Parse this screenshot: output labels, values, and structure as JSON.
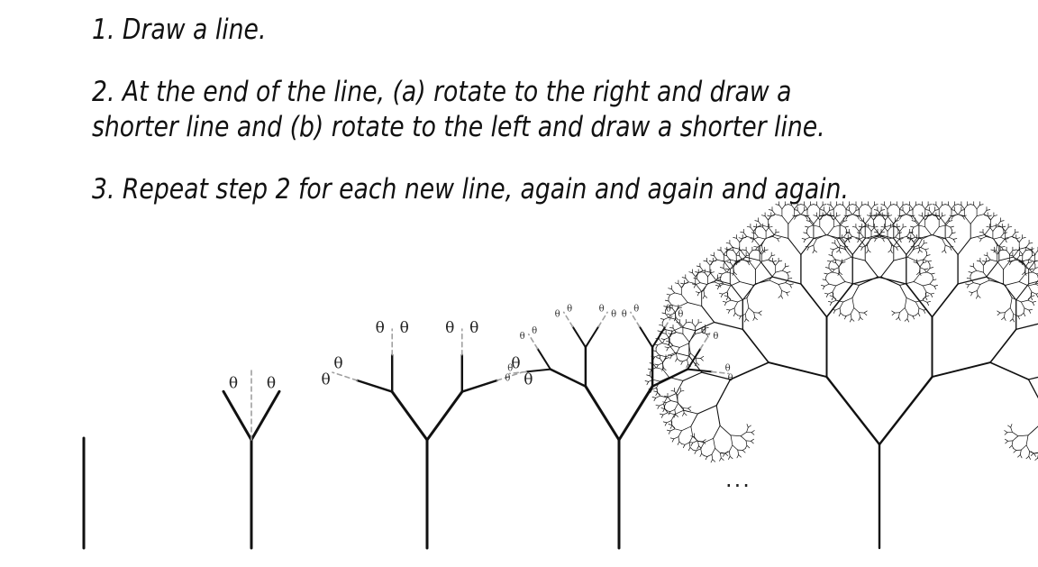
{
  "steps": [
    {
      "text": "1. Draw a line."
    },
    {
      "text": "2. At the end of the line, (a) rotate to the right and draw a\nshorter line and (b) rotate to the left and draw a shorter line."
    },
    {
      "text": "3. Repeat step 2 for each new line, again and again and again."
    }
  ],
  "diagram": {
    "angle_symbol": "θ",
    "ellipsis": "...",
    "stages": [
      {
        "name": "stage-0-line",
        "depth": 0,
        "shows_angles": false
      },
      {
        "name": "stage-1-tree",
        "depth": 1,
        "shows_angles": true
      },
      {
        "name": "stage-2-tree",
        "depth": 2,
        "shows_angles": true
      },
      {
        "name": "stage-3-tree",
        "depth": 3,
        "shows_angles": true
      },
      {
        "name": "stage-final-tree",
        "depth": 10,
        "shows_angles": false
      }
    ]
  }
}
